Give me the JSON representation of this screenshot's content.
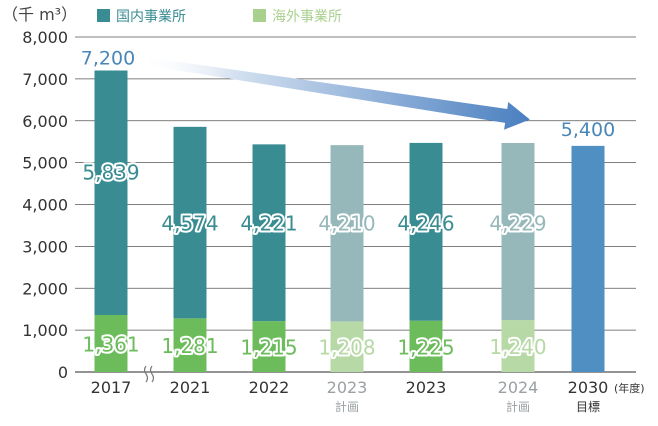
{
  "chart_data": {
    "type": "bar",
    "stacked": true,
    "unit_label": "（千 m³）",
    "year_unit": "(年度)",
    "ylim": [
      0,
      8000
    ],
    "yticks": [
      "0",
      "1,000",
      "2,000",
      "3,000",
      "4,000",
      "5,000",
      "6,000",
      "7,000",
      "8,000"
    ],
    "ytick_values": [
      0,
      1000,
      2000,
      3000,
      4000,
      5000,
      6000,
      7000,
      8000
    ],
    "grid": true,
    "legend_position": "top-left",
    "series": [
      {
        "name": "国内事業所",
        "color": "#3a8c93"
      },
      {
        "name": "海外事業所",
        "color": "#a9d18e"
      }
    ],
    "categories": [
      {
        "label": "2017",
        "sublabel": "",
        "plan": false,
        "overseas": 1361,
        "domestic": 5839,
        "overseas_label": "1,361",
        "domestic_label": "5,839",
        "total_label": "7,200"
      },
      {
        "label": "2021",
        "sublabel": "",
        "plan": false,
        "overseas": 1281,
        "domestic": 4574,
        "overseas_label": "1,281",
        "domestic_label": "4,574"
      },
      {
        "label": "2022",
        "sublabel": "",
        "plan": false,
        "overseas": 1215,
        "domestic": 4221,
        "overseas_label": "1,215",
        "domestic_label": "4,221"
      },
      {
        "label": "2023",
        "sublabel": "計画",
        "plan": true,
        "overseas": 1208,
        "domestic": 4210,
        "overseas_label": "1,208",
        "domestic_label": "4,210"
      },
      {
        "label": "2023",
        "sublabel": "",
        "plan": false,
        "overseas": 1225,
        "domestic": 4246,
        "overseas_label": "1,225",
        "domestic_label": "4,246"
      },
      {
        "label": "2024",
        "sublabel": "計画",
        "plan": true,
        "overseas": 1240,
        "domestic": 4229,
        "overseas_label": "1,240",
        "domestic_label": "4,229"
      },
      {
        "label": "2030",
        "sublabel": "目標",
        "plan": false,
        "target": true,
        "total": 5400,
        "total_label": "5,400"
      }
    ],
    "colors": {
      "domestic": "#3a8c93",
      "overseas": "#6cbc5c",
      "domestic_plan": "#97b8bb",
      "overseas_plan": "#b7d9a6",
      "target": "#4f8fc2",
      "total_text": "#4a87b8",
      "gridline": "#555555"
    }
  }
}
